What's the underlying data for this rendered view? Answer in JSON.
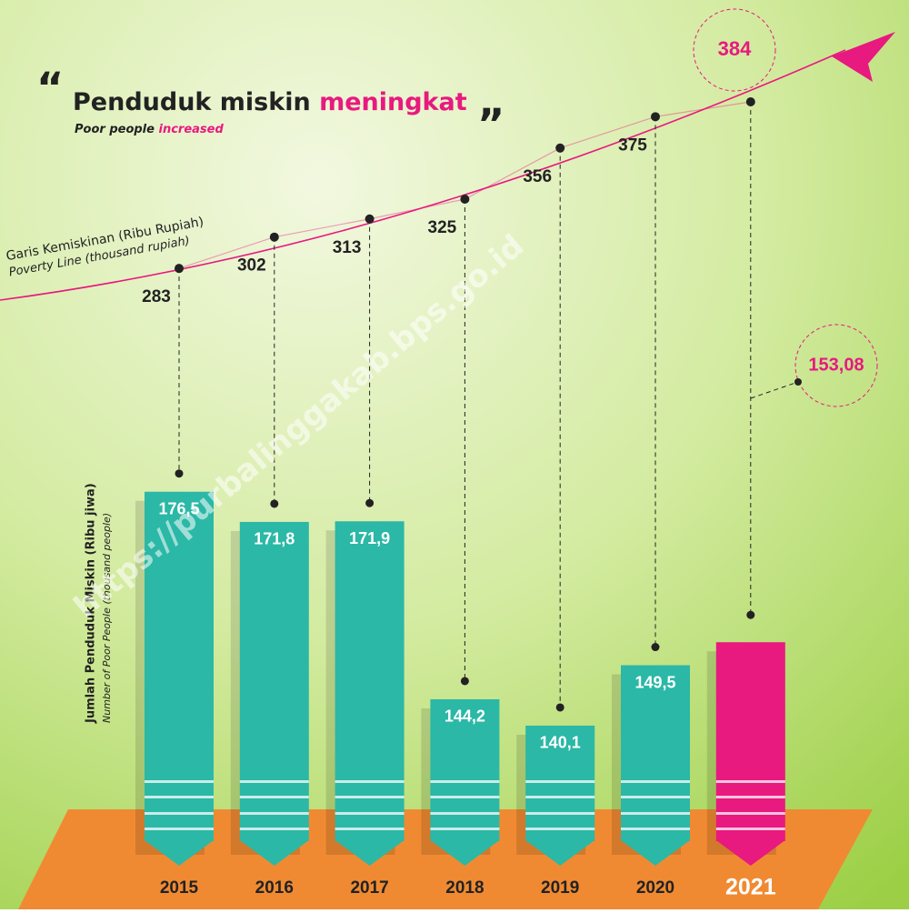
{
  "chart_data": {
    "type": "bar",
    "title": "Penduduk miskin",
    "title_highlight": "meningkat",
    "subtitle": "Poor people",
    "subtitle_highlight": "increased",
    "watermark": "https://purbalinggakab.bps.go.id",
    "categories": [
      "2015",
      "2016",
      "2017",
      "2018",
      "2019",
      "2020",
      "2021"
    ],
    "bars": {
      "label": "Jumlah Penduduk Miskin (Ribu jiwa)",
      "label_en": "Number of Poor People (thousand people)",
      "values": [
        176.5,
        171.8,
        171.9,
        144.2,
        140.1,
        149.5,
        153.08
      ],
      "value_labels": [
        "176,5",
        "171,8",
        "171,9",
        "144,2",
        "140,1",
        "149,5",
        "153,08"
      ],
      "color": "#2bb8a6",
      "highlight_color": "#e8197f"
    },
    "ylim": [
      120,
      180
    ],
    "line": {
      "label": "Garis Kemiskinan (Ribu Rupiah)",
      "label_en": "Poverty Line (thousand rupiah)",
      "values": [
        283,
        302,
        313,
        325,
        356,
        375,
        384
      ],
      "color": "#e8197f",
      "axis": "y2"
    },
    "y2lim": [
      250,
      400
    ]
  }
}
